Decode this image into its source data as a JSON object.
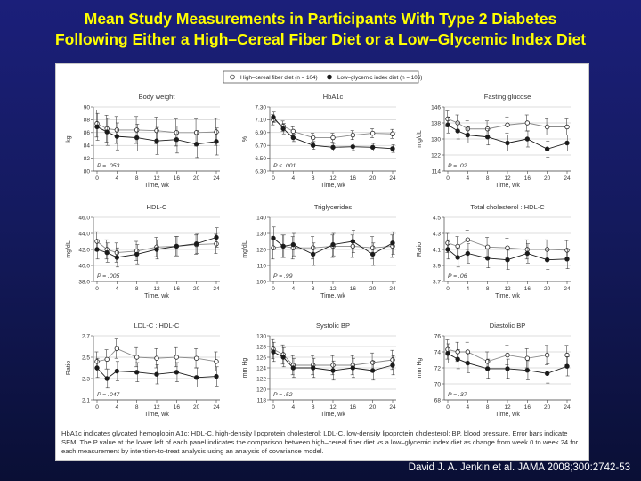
{
  "slide": {
    "title_line1": "Mean Study Measurements in Participants With Type 2 Diabetes",
    "title_line2": "Following Either a High–Cereal Fiber Diet or a Low–Glycemic Index Diet",
    "citation": "David J. A. Jenkin et al. JAMA 2008;300:2742-53",
    "caption": "HbA1c indicates glycated hemoglobin A1c; HDL-C, high-density lipoprotein cholesterol; LDL-C, low-density lipoprotein cholesterol; BP, blood pressure. Error bars indicate SEM. The P value at the lower left of each panel indicates the comparison between high–cereal fiber diet vs a low–glycemic index diet as change from week 0 to week 24 for each measurement by intention-to-treat analysis using an analysis of covariance model."
  },
  "legend": {
    "entries": [
      {
        "label": "High–cereal fiber diet (n = 104)",
        "marker": "open"
      },
      {
        "label": "Low–glycemic index diet (n = 106)",
        "marker": "filled"
      }
    ]
  },
  "colors": {
    "title": "#ffff00",
    "open_marker": "#ffffff",
    "filled_marker": "#1a1a1a",
    "line_open": "#8a8a8a",
    "line_filled": "#1a1a1a"
  },
  "chart_data": [
    {
      "type": "line",
      "title": "Body weight",
      "ylabel": "kg",
      "xlabel": "Time, wk",
      "pvalue": "P = .053",
      "x": [
        0,
        2,
        4,
        8,
        12,
        16,
        20,
        24
      ],
      "xticks": [
        0,
        4,
        8,
        12,
        16,
        20,
        24
      ],
      "ylim": [
        80,
        90
      ],
      "yticks": [
        "80",
        "82",
        "84",
        "86",
        "88",
        "90"
      ],
      "series": [
        {
          "name": "High–cereal fiber diet",
          "values": [
            87.4,
            86.6,
            86.4,
            86.4,
            86.3,
            86.0,
            86.0,
            86.1
          ],
          "err": [
            2.1,
            2.1,
            2.1,
            2.1,
            2.1,
            2.1,
            2.1,
            2.1
          ]
        },
        {
          "name": "Low–glycemic index diet",
          "values": [
            86.9,
            86.1,
            85.4,
            85.2,
            84.7,
            84.9,
            84.2,
            84.6
          ],
          "err": [
            2.1,
            2.1,
            2.1,
            2.1,
            2.1,
            2.1,
            2.1,
            2.1
          ]
        }
      ]
    },
    {
      "type": "line",
      "title": "HbA1c",
      "ylabel": "%",
      "xlabel": "Time, wk",
      "pvalue": "P < .001",
      "x": [
        0,
        2,
        4,
        8,
        12,
        16,
        20,
        24
      ],
      "xticks": [
        0,
        4,
        8,
        12,
        16,
        20,
        24
      ],
      "ylim": [
        6.3,
        7.3
      ],
      "yticks": [
        "6.30",
        "6.50",
        "6.70",
        "6.90",
        "7.10",
        "7.30"
      ],
      "series": [
        {
          "name": "High–cereal fiber diet",
          "values": [
            7.1,
            7.0,
            6.92,
            6.82,
            6.82,
            6.86,
            6.89,
            6.88
          ],
          "err": [
            0.08,
            0.08,
            0.07,
            0.07,
            0.07,
            0.07,
            0.07,
            0.07
          ]
        },
        {
          "name": "Low–glycemic index diet",
          "values": [
            7.14,
            6.96,
            6.82,
            6.7,
            6.67,
            6.68,
            6.67,
            6.65
          ],
          "err": [
            0.08,
            0.08,
            0.06,
            0.06,
            0.06,
            0.06,
            0.06,
            0.06
          ]
        }
      ]
    },
    {
      "type": "line",
      "title": "Fasting glucose",
      "ylabel": "mg/dL",
      "xlabel": "Time, wk",
      "pvalue": "P = .02",
      "x": [
        0,
        2,
        4,
        8,
        12,
        16,
        20,
        24
      ],
      "xticks": [
        0,
        4,
        8,
        12,
        16,
        20,
        24
      ],
      "ylim": [
        114,
        146
      ],
      "yticks": [
        "114",
        "122",
        "130",
        "138",
        "146"
      ],
      "series": [
        {
          "name": "High–cereal fiber diet",
          "values": [
            140,
            138,
            135,
            135,
            137,
            138,
            136,
            136
          ],
          "err": [
            4,
            4,
            4,
            4,
            4,
            4,
            4,
            4
          ]
        },
        {
          "name": "Low–glycemic index diet",
          "values": [
            137,
            134,
            132,
            131,
            128,
            130,
            125,
            128
          ],
          "err": [
            4,
            4,
            4,
            4,
            4,
            4,
            4,
            4
          ]
        }
      ]
    },
    {
      "type": "line",
      "title": "HDL-C",
      "ylabel": "mg/dL",
      "xlabel": "Time, wk",
      "pvalue": "P = .005",
      "x": [
        0,
        2,
        4,
        8,
        12,
        16,
        20,
        24
      ],
      "xticks": [
        0,
        4,
        8,
        12,
        16,
        20,
        24
      ],
      "ylim": [
        38.0,
        46.0
      ],
      "yticks": [
        "38.0",
        "40.0",
        "42.0",
        "44.0",
        "46.0"
      ],
      "series": [
        {
          "name": "High–cereal fiber diet",
          "values": [
            43.0,
            42.0,
            41.6,
            41.8,
            42.3,
            42.4,
            42.6,
            42.7
          ],
          "err": [
            1.2,
            1.2,
            1.2,
            1.2,
            1.2,
            1.2,
            1.2,
            1.2
          ]
        },
        {
          "name": "Low–glycemic index diet",
          "values": [
            42.0,
            41.6,
            41.0,
            41.4,
            42.0,
            42.4,
            42.7,
            43.5
          ],
          "err": [
            1.2,
            1.2,
            1.2,
            1.2,
            1.2,
            1.2,
            1.2,
            1.2
          ]
        }
      ]
    },
    {
      "type": "line",
      "title": "Triglycerides",
      "ylabel": "mg/dL",
      "xlabel": "Time, wk",
      "pvalue": "P = .99",
      "x": [
        0,
        2,
        4,
        8,
        12,
        16,
        20,
        24
      ],
      "xticks": [
        0,
        4,
        8,
        12,
        16,
        20,
        24
      ],
      "ylim": [
        100,
        140
      ],
      "yticks": [
        "100",
        "110",
        "120",
        "130",
        "140"
      ],
      "series": [
        {
          "name": "High–cereal fiber diet",
          "values": [
            121,
            122,
            121,
            121,
            122,
            122,
            121,
            122
          ],
          "err": [
            7,
            7,
            7,
            7,
            7,
            7,
            7,
            7
          ]
        },
        {
          "name": "Low–glycemic index diet",
          "values": [
            127,
            122,
            123,
            117,
            123,
            125,
            117,
            124
          ],
          "err": [
            7,
            7,
            7,
            7,
            7,
            7,
            7,
            7
          ]
        }
      ]
    },
    {
      "type": "line",
      "title": "Total cholesterol : HDL-C",
      "ylabel": "Ratio",
      "xlabel": "Time, wk",
      "pvalue": "P = .06",
      "x": [
        0,
        2,
        4,
        8,
        12,
        16,
        20,
        24
      ],
      "xticks": [
        0,
        4,
        8,
        12,
        16,
        20,
        24
      ],
      "ylim": [
        3.7,
        4.5
      ],
      "yticks": [
        "3.7",
        "3.9",
        "4.1",
        "4.3",
        "4.5"
      ],
      "series": [
        {
          "name": "High–cereal fiber diet",
          "values": [
            4.18,
            4.14,
            4.22,
            4.13,
            4.12,
            4.1,
            4.1,
            4.09
          ],
          "err": [
            0.12,
            0.12,
            0.12,
            0.12,
            0.12,
            0.12,
            0.12,
            0.12
          ]
        },
        {
          "name": "Low–glycemic index diet",
          "values": [
            4.1,
            4.0,
            4.05,
            3.99,
            3.97,
            4.05,
            3.97,
            3.98
          ],
          "err": [
            0.12,
            0.12,
            0.12,
            0.12,
            0.12,
            0.12,
            0.12,
            0.12
          ]
        }
      ]
    },
    {
      "type": "line",
      "title": "LDL-C : HDL-C",
      "ylabel": "Ratio",
      "xlabel": "Time, wk",
      "pvalue": "P = .047",
      "x": [
        0,
        2,
        4,
        8,
        12,
        16,
        20,
        24
      ],
      "xticks": [
        0,
        4,
        8,
        12,
        16,
        20,
        24
      ],
      "ylim": [
        2.1,
        2.7
      ],
      "yticks": [
        "2.1",
        "2.3",
        "2.5",
        "2.7"
      ],
      "series": [
        {
          "name": "High–cereal fiber diet",
          "values": [
            2.46,
            2.48,
            2.58,
            2.5,
            2.49,
            2.5,
            2.49,
            2.46
          ],
          "err": [
            0.09,
            0.09,
            0.09,
            0.09,
            0.09,
            0.09,
            0.09,
            0.09
          ]
        },
        {
          "name": "Low–glycemic index diet",
          "values": [
            2.4,
            2.3,
            2.37,
            2.36,
            2.34,
            2.36,
            2.31,
            2.32
          ],
          "err": [
            0.09,
            0.09,
            0.09,
            0.09,
            0.09,
            0.09,
            0.09,
            0.09
          ]
        }
      ]
    },
    {
      "type": "line",
      "title": "Systolic BP",
      "ylabel": "mm Hg",
      "xlabel": "Time, wk",
      "pvalue": "P = .52",
      "x": [
        0,
        2,
        4,
        8,
        12,
        16,
        20,
        24
      ],
      "xticks": [
        0,
        4,
        8,
        12,
        16,
        20,
        24
      ],
      "ylim": [
        118,
        130
      ],
      "yticks": [
        "118",
        "120",
        "122",
        "124",
        "126",
        "128",
        "130"
      ],
      "series": [
        {
          "name": "High–cereal fiber diet",
          "values": [
            127.5,
            126.5,
            124.5,
            124.5,
            124.5,
            124.5,
            125.0,
            125.5
          ],
          "err": [
            1.8,
            1.8,
            1.8,
            1.8,
            1.8,
            1.8,
            1.8,
            1.8
          ]
        },
        {
          "name": "Low–glycemic index diet",
          "values": [
            127.0,
            126.0,
            124.0,
            124.0,
            123.5,
            124.0,
            123.5,
            124.5
          ],
          "err": [
            1.8,
            1.8,
            1.8,
            1.8,
            1.8,
            1.8,
            1.8,
            1.8
          ]
        }
      ]
    },
    {
      "type": "line",
      "title": "Diastolic BP",
      "ylabel": "mm Hg",
      "xlabel": "Time, wk",
      "pvalue": "P = .37",
      "x": [
        0,
        2,
        4,
        8,
        12,
        16,
        20,
        24
      ],
      "xticks": [
        0,
        4,
        8,
        12,
        16,
        20,
        24
      ],
      "ylim": [
        68,
        76
      ],
      "yticks": [
        "68",
        "70",
        "72",
        "74",
        "76"
      ],
      "series": [
        {
          "name": "High–cereal fiber diet",
          "values": [
            74.3,
            74.0,
            74.0,
            72.8,
            73.6,
            73.2,
            73.6,
            73.6
          ],
          "err": [
            1.2,
            1.2,
            1.2,
            1.2,
            1.2,
            1.2,
            1.2,
            1.2
          ]
        },
        {
          "name": "Low–glycemic index diet",
          "values": [
            73.8,
            73.1,
            72.6,
            71.9,
            71.9,
            71.7,
            71.3,
            72.2
          ],
          "err": [
            1.2,
            1.2,
            1.2,
            1.2,
            1.2,
            1.2,
            1.2,
            1.2
          ]
        }
      ]
    }
  ]
}
